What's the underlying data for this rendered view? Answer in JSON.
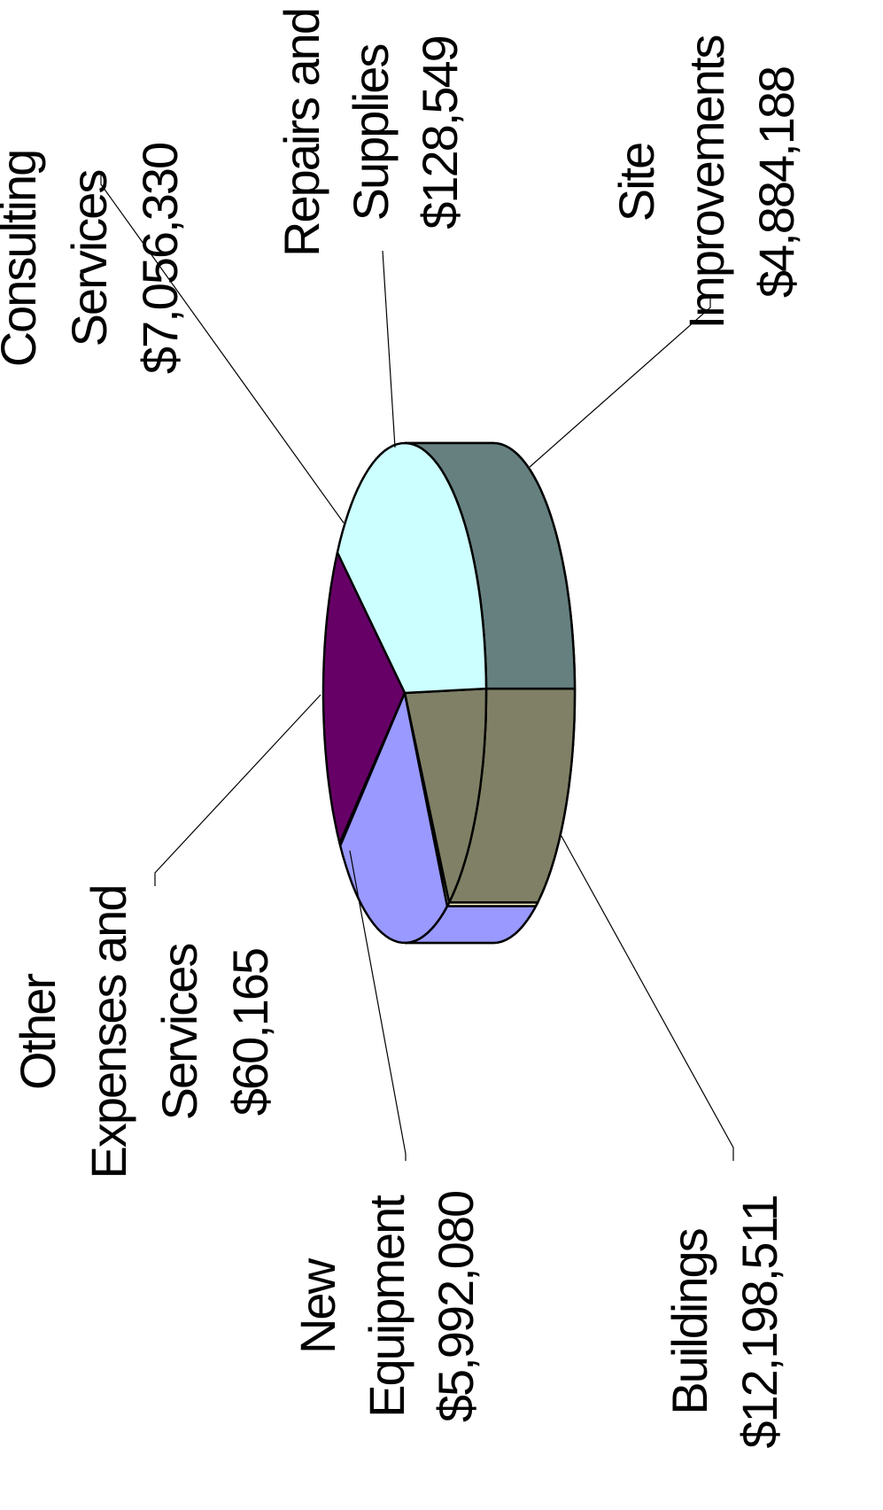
{
  "chart_data": {
    "type": "pie",
    "three_d": true,
    "orientation": "rotated 90 degrees counter-clockwise",
    "categories": [
      "Site Improvements",
      "Buildings",
      "New Equipment",
      "Other Expenses and Services",
      "Consulting Services",
      "Repairs and Supplies"
    ],
    "values": [
      4884188,
      12198511,
      5992080,
      60165,
      7056330,
      128549
    ],
    "value_labels": [
      "$4,884,188",
      "$12,198,511",
      "$5,992,080",
      "$60,165",
      "$7,056,330",
      "$128,549"
    ],
    "colors": [
      "#808066",
      "#CCFFFF",
      "#660066",
      "#FF8080",
      "#9999FF",
      "#FFFFCC"
    ],
    "side_colors": [
      "#808066",
      "#668080",
      "#660066",
      "#FF8080",
      "#9999FF",
      "#FFFFCC"
    ],
    "labels": [
      {
        "lines": [
          "Site",
          "Improvements",
          "$4,884,188"
        ]
      },
      {
        "lines": [
          "Buildings",
          "$12,198,511"
        ]
      },
      {
        "lines": [
          "New",
          "Equipment",
          "$5,992,080"
        ]
      },
      {
        "lines": [
          "Other",
          "Expenses and",
          "Services",
          "$60,165"
        ]
      },
      {
        "lines": [
          "Consulting",
          "Services",
          "$7,056,330"
        ]
      },
      {
        "lines": [
          "Repairs and",
          "Supplies",
          "$128,549"
        ]
      }
    ],
    "legend": "none"
  }
}
